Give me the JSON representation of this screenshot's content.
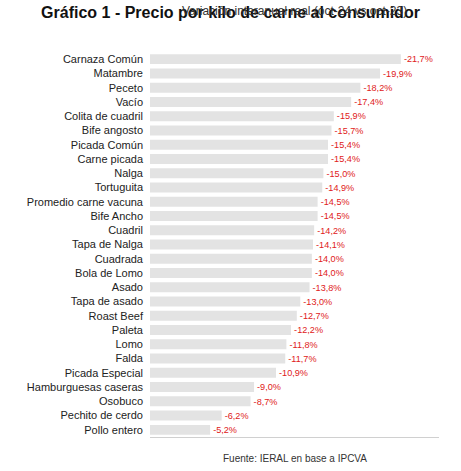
{
  "chart_data": {
    "type": "bar",
    "orientation": "horizontal",
    "title": "Gráfico 1 - Precio por kilo de carne al consumidor",
    "subtitle": "Variación interanual real (oct-24 vs oct-23)",
    "source": "Fuente: IERAL en base a IPCVA",
    "categories": [
      "Carnaza Común",
      "Matambre",
      "Peceto",
      "Vacío",
      "Colita de cuadril",
      "Bife angosto",
      "Picada Común",
      "Carne picada",
      "Nalga",
      "Tortuguita",
      "Promedio carne vacuna",
      "Bife Ancho",
      "Cuadril",
      "Tapa de Nalga",
      "Cuadrada",
      "Bola de Lomo",
      "Asado",
      "Tapa de asado",
      "Roast Beef",
      "Paleta",
      "Lomo",
      "Falda",
      "Picada Especial",
      "Hamburguesas caseras",
      "Osobuco",
      "Pechito de cerdo",
      "Pollo entero"
    ],
    "values": [
      -21.7,
      -19.9,
      -18.2,
      -17.4,
      -15.9,
      -15.7,
      -15.4,
      -15.4,
      -15.0,
      -14.9,
      -14.5,
      -14.5,
      -14.2,
      -14.1,
      -14.0,
      -14.0,
      -13.8,
      -13.0,
      -12.7,
      -12.2,
      -11.8,
      -11.7,
      -10.9,
      -9.0,
      -8.7,
      -6.2,
      -5.2
    ],
    "value_labels": [
      "-21,7%",
      "-19,9%",
      "-18,2%",
      "-17,4%",
      "-15,9%",
      "-15,7%",
      "-15,4%",
      "-15,4%",
      "-15,0%",
      "-14,9%",
      "-14,5%",
      "-14,5%",
      "-14,2%",
      "-14,1%",
      "-14,0%",
      "-14,0%",
      "-13,8%",
      "-13,0%",
      "-12,7%",
      "-12,2%",
      "-11,8%",
      "-11,7%",
      "-10,9%",
      "-9,0%",
      "-8,7%",
      "-6,2%",
      "-5,2%"
    ],
    "color": "#e3e3e3",
    "label_color": "#e02020",
    "xlim": [
      0,
      -25
    ],
    "xticks": [],
    "data_labels": true,
    "tick_labels": "y",
    "grid": false
  }
}
